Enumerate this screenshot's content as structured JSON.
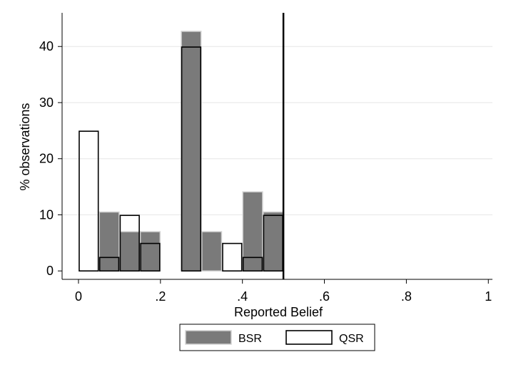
{
  "chart_data": {
    "type": "bar",
    "xlabel": "Reported Belief",
    "ylabel": "% observations",
    "xlim": [
      -0.04,
      1.01
    ],
    "ylim": [
      -1.5,
      46
    ],
    "x_ticks": [
      0,
      0.2,
      0.4,
      0.6,
      0.8,
      1
    ],
    "x_tick_labels": [
      "0",
      ".2",
      ".4",
      ".6",
      ".8",
      "1"
    ],
    "y_ticks": [
      0,
      10,
      20,
      30,
      40
    ],
    "y_tick_labels": [
      "0",
      "10",
      "20",
      "30",
      "40"
    ],
    "grid": "horizontal",
    "bin_width": 0.05,
    "reference_line_x": 0.5,
    "legend_position": "bottom",
    "series": [
      {
        "name": "BSR",
        "style": "filled",
        "color": "#7a7a7a",
        "bins": [
          {
            "x": 0.05,
            "value": 10.5
          },
          {
            "x": 0.1,
            "value": 7.0
          },
          {
            "x": 0.15,
            "value": 7.0
          },
          {
            "x": 0.25,
            "value": 42.7
          },
          {
            "x": 0.3,
            "value": 7.0
          },
          {
            "x": 0.4,
            "value": 14.1
          },
          {
            "x": 0.45,
            "value": 10.5
          }
        ]
      },
      {
        "name": "QSR",
        "style": "outline",
        "color": "#000000",
        "bins": [
          {
            "x": 0.0,
            "value": 24.9
          },
          {
            "x": 0.05,
            "value": 2.4
          },
          {
            "x": 0.1,
            "value": 9.9
          },
          {
            "x": 0.15,
            "value": 4.9
          },
          {
            "x": 0.25,
            "value": 39.9
          },
          {
            "x": 0.35,
            "value": 4.9
          },
          {
            "x": 0.4,
            "value": 2.4
          },
          {
            "x": 0.45,
            "value": 9.9
          }
        ]
      }
    ]
  }
}
